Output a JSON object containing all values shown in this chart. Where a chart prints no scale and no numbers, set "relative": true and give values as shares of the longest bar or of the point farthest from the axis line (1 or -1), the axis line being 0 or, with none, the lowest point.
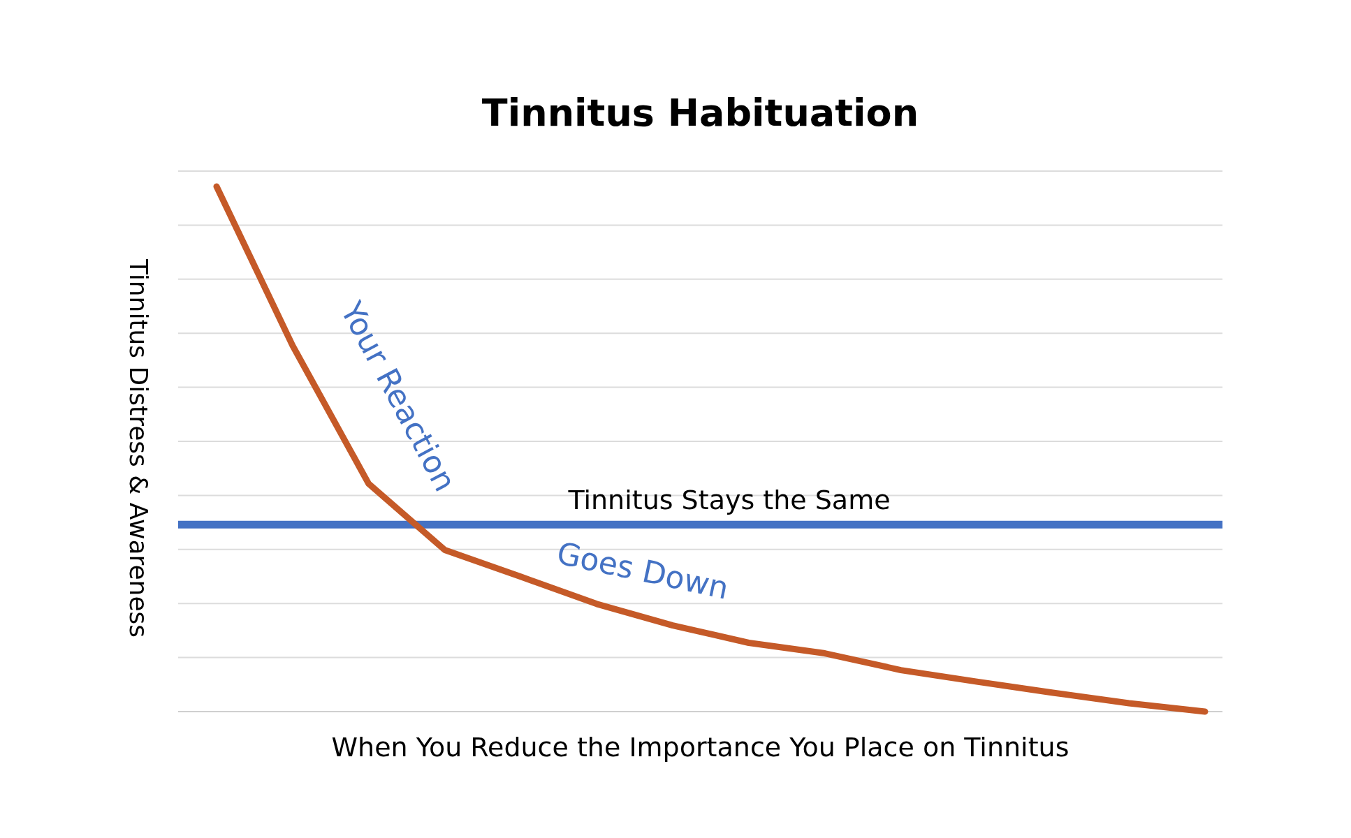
{
  "chart_data": {
    "type": "line",
    "title": "Tinnitus Habituation",
    "xlabel": "When You Reduce the Importance You Place on Tinnitus",
    "ylabel": "Tinnitus Distress & Awareness",
    "relative": true,
    "grid": true,
    "line_style": "solid",
    "categories": [
      null,
      null,
      null,
      null,
      null,
      null,
      null,
      null,
      null,
      null,
      null,
      null,
      null,
      null
    ],
    "series": [
      {
        "color": "#c55a28",
        "values": [
          1,
          0.697,
          0.434,
          0.308,
          0.257,
          0.205,
          0.164,
          0.131,
          0.111,
          0.079,
          0.057,
          0.036,
          0.016,
          0
        ]
      }
    ],
    "ref_lines": [
      {
        "axis": "y",
        "value": 0.356,
        "label": "Tinnitus Stays the Same",
        "color": "#4472c4",
        "line_style": "solid"
      }
    ],
    "annotations": [
      "Your Reaction",
      "Goes Down"
    ]
  }
}
